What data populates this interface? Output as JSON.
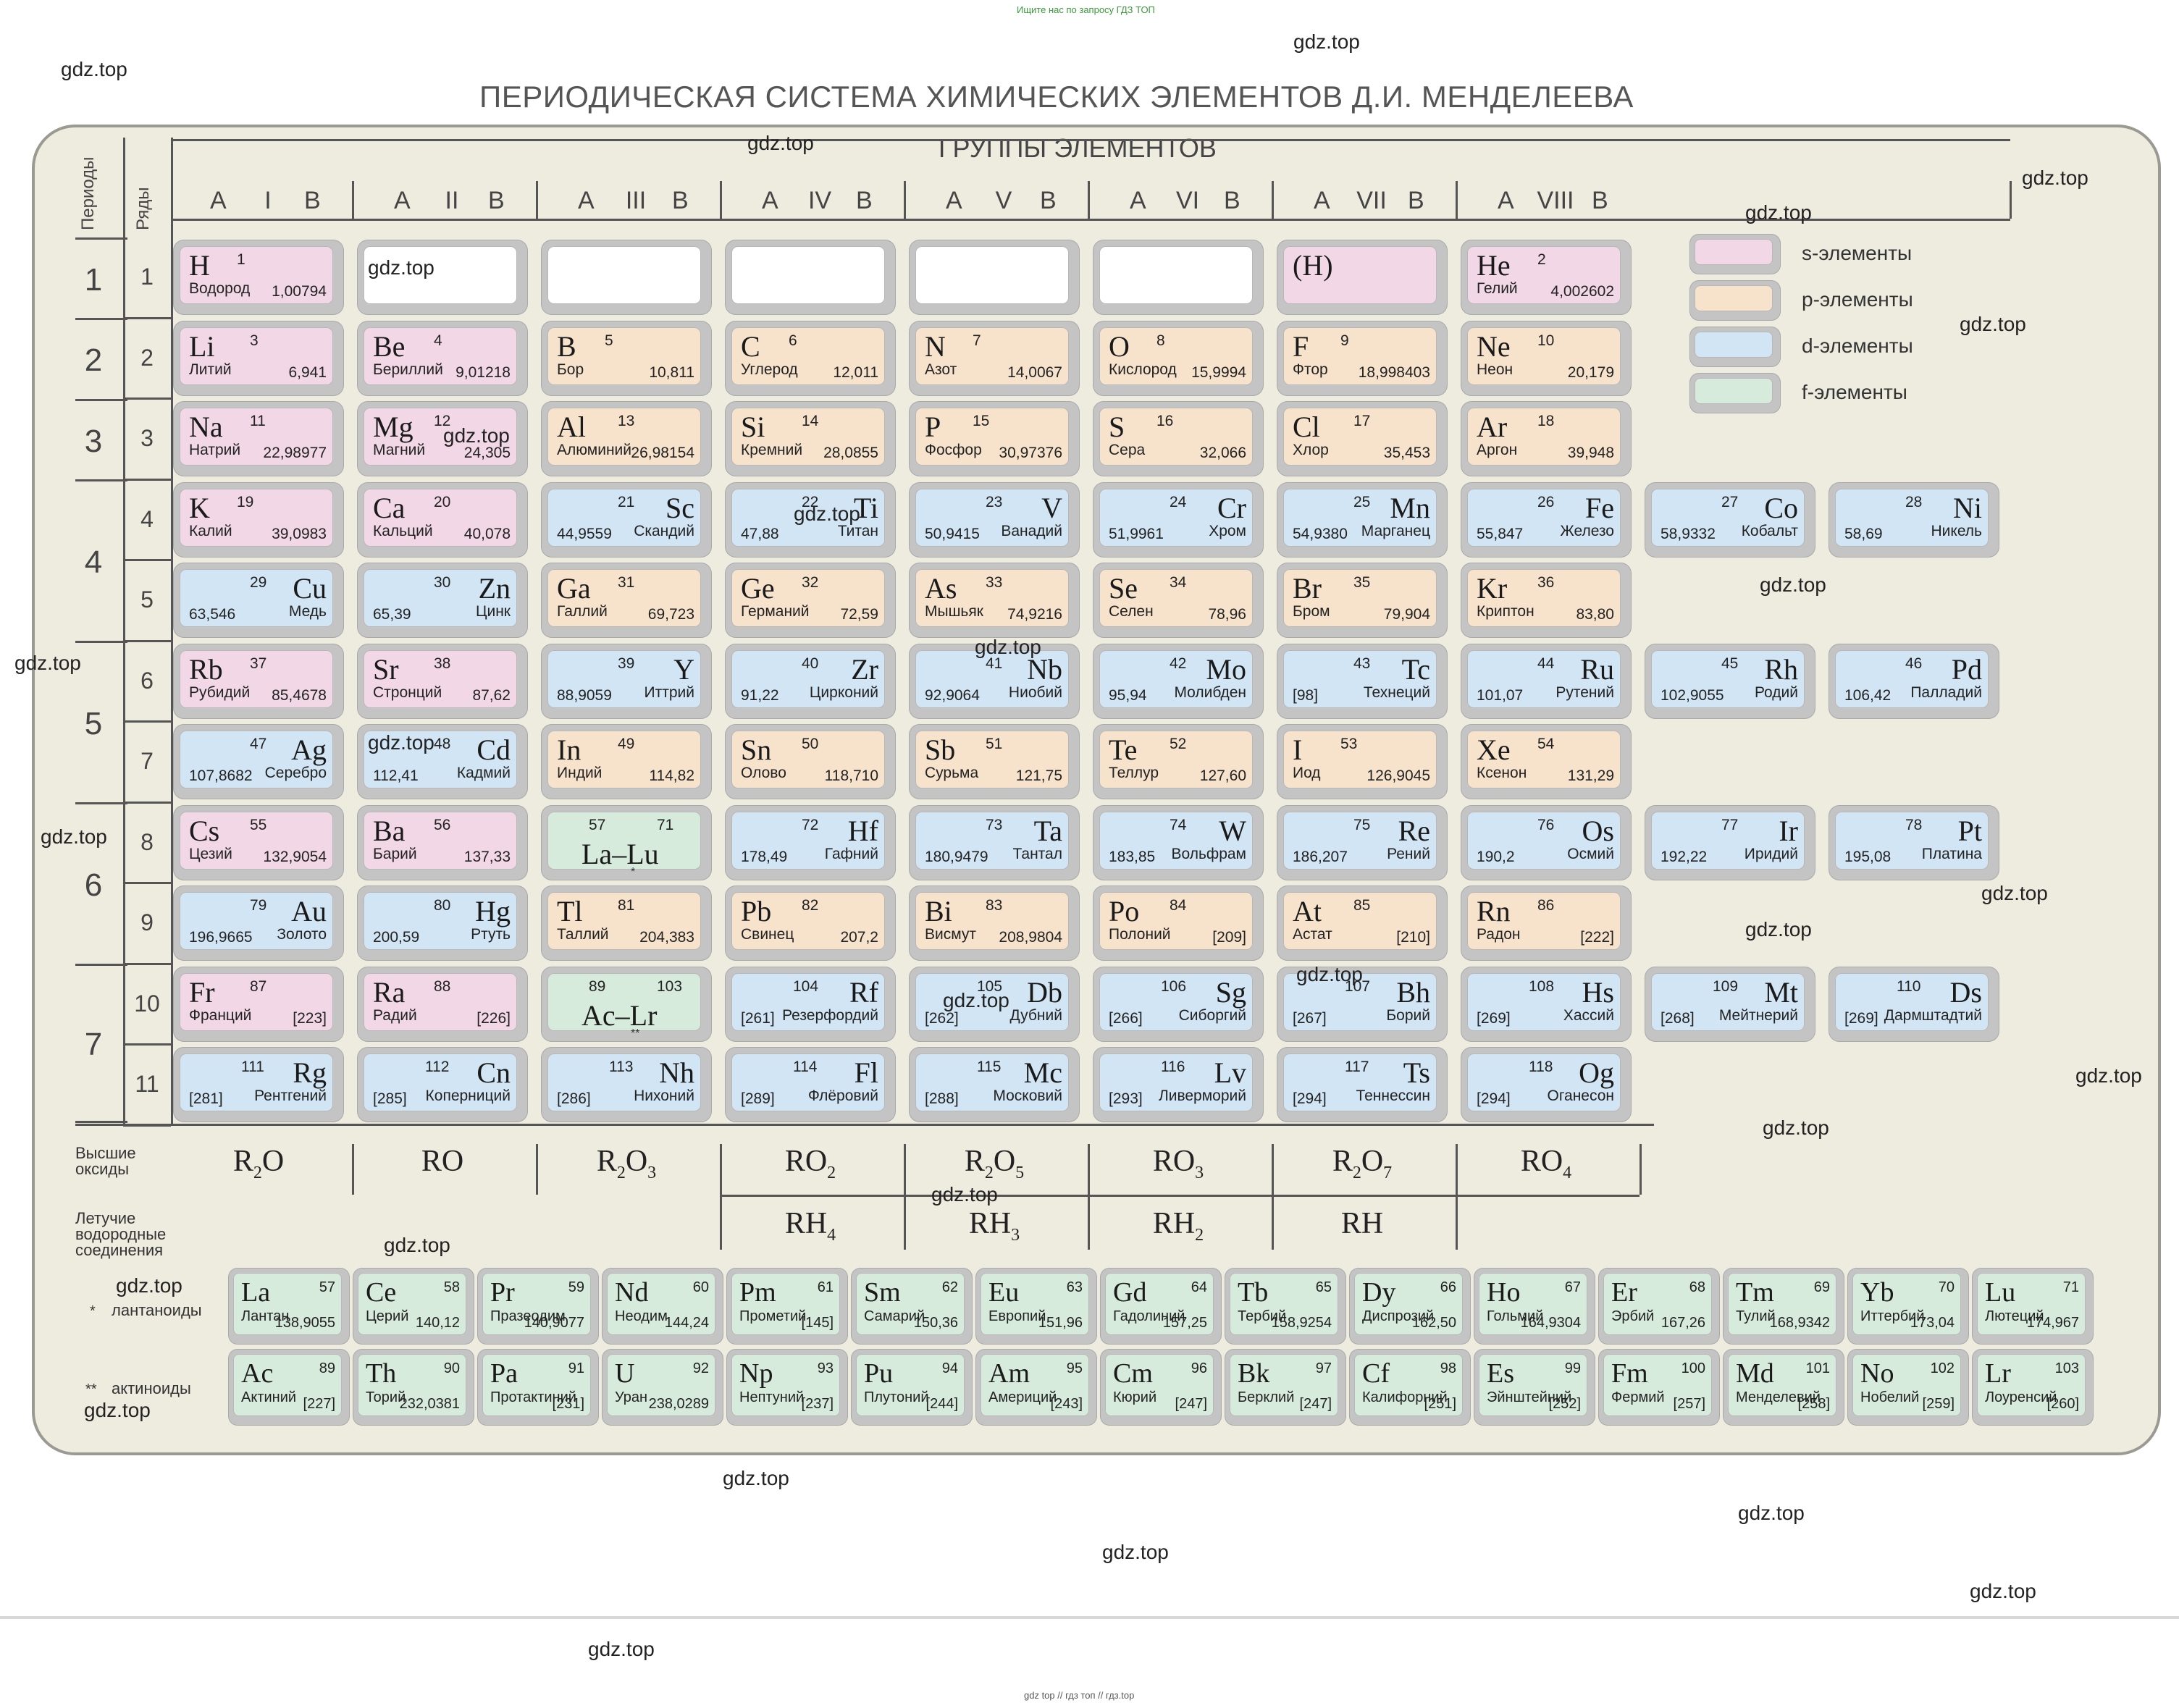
{
  "top_note": "Ищите нас по запросу ГДЗ ТОП",
  "bottom_note": "gdz top  //  гдз топ  //  гдз.top",
  "title": "ПЕРИОДИЧЕСКАЯ СИСТЕМА ХИМИЧЕСКИХ ЭЛЕМЕНТОВ Д.И. МЕНДЕЛЕЕВА",
  "groups_title": "ГРУППЫ ЭЛЕМЕНТОВ",
  "periods_label": "Периоды",
  "rows_label": "Ряды",
  "colors": {
    "s": "#f2d7e6",
    "p": "#f7e3cc",
    "d": "#d1e5f5",
    "f": "#d7ebdd",
    "board": "#eeecdf"
  },
  "groups": [
    {
      "a": "A",
      "roman": "I",
      "b": "B"
    },
    {
      "a": "A",
      "roman": "II",
      "b": "B"
    },
    {
      "a": "A",
      "roman": "III",
      "b": "B"
    },
    {
      "a": "A",
      "roman": "IV",
      "b": "B"
    },
    {
      "a": "A",
      "roman": "V",
      "b": "B"
    },
    {
      "a": "A",
      "roman": "VI",
      "b": "B"
    },
    {
      "a": "A",
      "roman": "VII",
      "b": "B"
    },
    {
      "a": "A",
      "roman": "VIII",
      "b": "B"
    }
  ],
  "periods": [
    "1",
    "2",
    "3",
    "4",
    "5",
    "6",
    "7"
  ],
  "rows": [
    "1",
    "2",
    "3",
    "4",
    "5",
    "6",
    "7",
    "8",
    "9",
    "10",
    "11"
  ],
  "legend": [
    {
      "type": "s",
      "label": "s-элементы"
    },
    {
      "type": "p",
      "label": "p-элементы"
    },
    {
      "type": "d",
      "label": "d-элементы"
    },
    {
      "type": "f",
      "label": "f-элементы"
    }
  ],
  "hydrogen_copy": "(H)",
  "elements": [
    {
      "s": "H",
      "n": "1",
      "name": "Водород",
      "m": "1,00794",
      "t": "s",
      "row": 1,
      "col": 1,
      "side": "L"
    },
    {
      "s": "He",
      "n": "2",
      "name": "Гелий",
      "m": "4,002602",
      "t": "s",
      "row": 1,
      "col": 8,
      "side": "L"
    },
    {
      "s": "Li",
      "n": "3",
      "name": "Литий",
      "m": "6,941",
      "t": "s",
      "row": 2,
      "col": 1,
      "side": "L"
    },
    {
      "s": "Be",
      "n": "4",
      "name": "Бериллий",
      "m": "9,01218",
      "t": "s",
      "row": 2,
      "col": 2,
      "side": "L"
    },
    {
      "s": "B",
      "n": "5",
      "name": "Бор",
      "m": "10,811",
      "t": "p",
      "row": 2,
      "col": 3,
      "side": "L"
    },
    {
      "s": "C",
      "n": "6",
      "name": "Углерод",
      "m": "12,011",
      "t": "p",
      "row": 2,
      "col": 4,
      "side": "L"
    },
    {
      "s": "N",
      "n": "7",
      "name": "Азот",
      "m": "14,0067",
      "t": "p",
      "row": 2,
      "col": 5,
      "side": "L"
    },
    {
      "s": "O",
      "n": "8",
      "name": "Кислород",
      "m": "15,9994",
      "t": "p",
      "row": 2,
      "col": 6,
      "side": "L"
    },
    {
      "s": "F",
      "n": "9",
      "name": "Фтор",
      "m": "18,998403",
      "t": "p",
      "row": 2,
      "col": 7,
      "side": "L"
    },
    {
      "s": "Ne",
      "n": "10",
      "name": "Неон",
      "m": "20,179",
      "t": "p",
      "row": 2,
      "col": 8,
      "side": "L"
    },
    {
      "s": "Na",
      "n": "11",
      "name": "Натрий",
      "m": "22,98977",
      "t": "s",
      "row": 3,
      "col": 1,
      "side": "L"
    },
    {
      "s": "Mg",
      "n": "12",
      "name": "Магний",
      "m": "24,305",
      "t": "s",
      "row": 3,
      "col": 2,
      "side": "L"
    },
    {
      "s": "Al",
      "n": "13",
      "name": "Алюминий",
      "m": "26,98154",
      "t": "p",
      "row": 3,
      "col": 3,
      "side": "L"
    },
    {
      "s": "Si",
      "n": "14",
      "name": "Кремний",
      "m": "28,0855",
      "t": "p",
      "row": 3,
      "col": 4,
      "side": "L"
    },
    {
      "s": "P",
      "n": "15",
      "name": "Фосфор",
      "m": "30,97376",
      "t": "p",
      "row": 3,
      "col": 5,
      "side": "L"
    },
    {
      "s": "S",
      "n": "16",
      "name": "Сера",
      "m": "32,066",
      "t": "p",
      "row": 3,
      "col": 6,
      "side": "L"
    },
    {
      "s": "Cl",
      "n": "17",
      "name": "Хлор",
      "m": "35,453",
      "t": "p",
      "row": 3,
      "col": 7,
      "side": "L"
    },
    {
      "s": "Ar",
      "n": "18",
      "name": "Аргон",
      "m": "39,948",
      "t": "p",
      "row": 3,
      "col": 8,
      "side": "L"
    },
    {
      "s": "K",
      "n": "19",
      "name": "Калий",
      "m": "39,0983",
      "t": "s",
      "row": 4,
      "col": 1,
      "side": "L"
    },
    {
      "s": "Ca",
      "n": "20",
      "name": "Кальций",
      "m": "40,078",
      "t": "s",
      "row": 4,
      "col": 2,
      "side": "L"
    },
    {
      "s": "Sc",
      "n": "21",
      "name": "Скандий",
      "m": "44,9559",
      "t": "d",
      "row": 4,
      "col": 3,
      "side": "R"
    },
    {
      "s": "Ti",
      "n": "22",
      "name": "Титан",
      "m": "47,88",
      "t": "d",
      "row": 4,
      "col": 4,
      "side": "R"
    },
    {
      "s": "V",
      "n": "23",
      "name": "Ванадий",
      "m": "50,9415",
      "t": "d",
      "row": 4,
      "col": 5,
      "side": "R"
    },
    {
      "s": "Cr",
      "n": "24",
      "name": "Хром",
      "m": "51,9961",
      "t": "d",
      "row": 4,
      "col": 6,
      "side": "R"
    },
    {
      "s": "Mn",
      "n": "25",
      "name": "Марганец",
      "m": "54,9380",
      "t": "d",
      "row": 4,
      "col": 7,
      "side": "R"
    },
    {
      "s": "Fe",
      "n": "26",
      "name": "Железо",
      "m": "55,847",
      "t": "d",
      "row": 4,
      "col": 8,
      "side": "R"
    },
    {
      "s": "Co",
      "n": "27",
      "name": "Кобальт",
      "m": "58,9332",
      "t": "d",
      "row": 4,
      "col": 9,
      "side": "R"
    },
    {
      "s": "Ni",
      "n": "28",
      "name": "Никель",
      "m": "58,69",
      "t": "d",
      "row": 4,
      "col": 10,
      "side": "R"
    },
    {
      "s": "Cu",
      "n": "29",
      "name": "Медь",
      "m": "63,546",
      "t": "d",
      "row": 5,
      "col": 1,
      "side": "R"
    },
    {
      "s": "Zn",
      "n": "30",
      "name": "Цинк",
      "m": "65,39",
      "t": "d",
      "row": 5,
      "col": 2,
      "side": "R"
    },
    {
      "s": "Ga",
      "n": "31",
      "name": "Галлий",
      "m": "69,723",
      "t": "p",
      "row": 5,
      "col": 3,
      "side": "L"
    },
    {
      "s": "Ge",
      "n": "32",
      "name": "Германий",
      "m": "72,59",
      "t": "p",
      "row": 5,
      "col": 4,
      "side": "L"
    },
    {
      "s": "As",
      "n": "33",
      "name": "Мышьяк",
      "m": "74,9216",
      "t": "p",
      "row": 5,
      "col": 5,
      "side": "L"
    },
    {
      "s": "Se",
      "n": "34",
      "name": "Селен",
      "m": "78,96",
      "t": "p",
      "row": 5,
      "col": 6,
      "side": "L"
    },
    {
      "s": "Br",
      "n": "35",
      "name": "Бром",
      "m": "79,904",
      "t": "p",
      "row": 5,
      "col": 7,
      "side": "L"
    },
    {
      "s": "Kr",
      "n": "36",
      "name": "Криптон",
      "m": "83,80",
      "t": "p",
      "row": 5,
      "col": 8,
      "side": "L"
    },
    {
      "s": "Rb",
      "n": "37",
      "name": "Рубидий",
      "m": "85,4678",
      "t": "s",
      "row": 6,
      "col": 1,
      "side": "L"
    },
    {
      "s": "Sr",
      "n": "38",
      "name": "Стронций",
      "m": "87,62",
      "t": "s",
      "row": 6,
      "col": 2,
      "side": "L"
    },
    {
      "s": "Y",
      "n": "39",
      "name": "Иттрий",
      "m": "88,9059",
      "t": "d",
      "row": 6,
      "col": 3,
      "side": "R"
    },
    {
      "s": "Zr",
      "n": "40",
      "name": "Цирконий",
      "m": "91,22",
      "t": "d",
      "row": 6,
      "col": 4,
      "side": "R"
    },
    {
      "s": "Nb",
      "n": "41",
      "name": "Ниобий",
      "m": "92,9064",
      "t": "d",
      "row": 6,
      "col": 5,
      "side": "R"
    },
    {
      "s": "Mo",
      "n": "42",
      "name": "Молибден",
      "m": "95,94",
      "t": "d",
      "row": 6,
      "col": 6,
      "side": "R"
    },
    {
      "s": "Tc",
      "n": "43",
      "name": "Технеций",
      "m": "[98]",
      "t": "d",
      "row": 6,
      "col": 7,
      "side": "R"
    },
    {
      "s": "Ru",
      "n": "44",
      "name": "Рутений",
      "m": "101,07",
      "t": "d",
      "row": 6,
      "col": 8,
      "side": "R"
    },
    {
      "s": "Rh",
      "n": "45",
      "name": "Родий",
      "m": "102,9055",
      "t": "d",
      "row": 6,
      "col": 9,
      "side": "R"
    },
    {
      "s": "Pd",
      "n": "46",
      "name": "Палладий",
      "m": "106,42",
      "t": "d",
      "row": 6,
      "col": 10,
      "side": "R"
    },
    {
      "s": "Ag",
      "n": "47",
      "name": "Серебро",
      "m": "107,8682",
      "t": "d",
      "row": 7,
      "col": 1,
      "side": "R"
    },
    {
      "s": "Cd",
      "n": "48",
      "name": "Кадмий",
      "m": "112,41",
      "t": "d",
      "row": 7,
      "col": 2,
      "side": "R"
    },
    {
      "s": "In",
      "n": "49",
      "name": "Индий",
      "m": "114,82",
      "t": "p",
      "row": 7,
      "col": 3,
      "side": "L"
    },
    {
      "s": "Sn",
      "n": "50",
      "name": "Олово",
      "m": "118,710",
      "t": "p",
      "row": 7,
      "col": 4,
      "side": "L"
    },
    {
      "s": "Sb",
      "n": "51",
      "name": "Сурьма",
      "m": "121,75",
      "t": "p",
      "row": 7,
      "col": 5,
      "side": "L"
    },
    {
      "s": "Te",
      "n": "52",
      "name": "Теллур",
      "m": "127,60",
      "t": "p",
      "row": 7,
      "col": 6,
      "side": "L"
    },
    {
      "s": "I",
      "n": "53",
      "name": "Иод",
      "m": "126,9045",
      "t": "p",
      "row": 7,
      "col": 7,
      "side": "L"
    },
    {
      "s": "Xe",
      "n": "54",
      "name": "Ксенон",
      "m": "131,29",
      "t": "p",
      "row": 7,
      "col": 8,
      "side": "L"
    },
    {
      "s": "Cs",
      "n": "55",
      "name": "Цезий",
      "m": "132,9054",
      "t": "s",
      "row": 8,
      "col": 1,
      "side": "L"
    },
    {
      "s": "Ba",
      "n": "56",
      "name": "Барий",
      "m": "137,33",
      "t": "s",
      "row": 8,
      "col": 2,
      "side": "L"
    },
    {
      "s": "Hf",
      "n": "72",
      "name": "Гафний",
      "m": "178,49",
      "t": "d",
      "row": 8,
      "col": 4,
      "side": "R"
    },
    {
      "s": "Ta",
      "n": "73",
      "name": "Тантал",
      "m": "180,9479",
      "t": "d",
      "row": 8,
      "col": 5,
      "side": "R"
    },
    {
      "s": "W",
      "n": "74",
      "name": "Вольфрам",
      "m": "183,85",
      "t": "d",
      "row": 8,
      "col": 6,
      "side": "R"
    },
    {
      "s": "Re",
      "n": "75",
      "name": "Рений",
      "m": "186,207",
      "t": "d",
      "row": 8,
      "col": 7,
      "side": "R"
    },
    {
      "s": "Os",
      "n": "76",
      "name": "Осмий",
      "m": "190,2",
      "t": "d",
      "row": 8,
      "col": 8,
      "side": "R"
    },
    {
      "s": "Ir",
      "n": "77",
      "name": "Иридий",
      "m": "192,22",
      "t": "d",
      "row": 8,
      "col": 9,
      "side": "R"
    },
    {
      "s": "Pt",
      "n": "78",
      "name": "Платина",
      "m": "195,08",
      "t": "d",
      "row": 8,
      "col": 10,
      "side": "R"
    },
    {
      "s": "Au",
      "n": "79",
      "name": "Золото",
      "m": "196,9665",
      "t": "d",
      "row": 9,
      "col": 1,
      "side": "R"
    },
    {
      "s": "Hg",
      "n": "80",
      "name": "Ртуть",
      "m": "200,59",
      "t": "d",
      "row": 9,
      "col": 2,
      "side": "R"
    },
    {
      "s": "Tl",
      "n": "81",
      "name": "Таллий",
      "m": "204,383",
      "t": "p",
      "row": 9,
      "col": 3,
      "side": "L"
    },
    {
      "s": "Pb",
      "n": "82",
      "name": "Свинец",
      "m": "207,2",
      "t": "p",
      "row": 9,
      "col": 4,
      "side": "L"
    },
    {
      "s": "Bi",
      "n": "83",
      "name": "Висмут",
      "m": "208,9804",
      "t": "p",
      "row": 9,
      "col": 5,
      "side": "L"
    },
    {
      "s": "Po",
      "n": "84",
      "name": "Полоний",
      "m": "[209]",
      "t": "p",
      "row": 9,
      "col": 6,
      "side": "L"
    },
    {
      "s": "At",
      "n": "85",
      "name": "Астат",
      "m": "[210]",
      "t": "p",
      "row": 9,
      "col": 7,
      "side": "L"
    },
    {
      "s": "Rn",
      "n": "86",
      "name": "Радон",
      "m": "[222]",
      "t": "p",
      "row": 9,
      "col": 8,
      "side": "L"
    },
    {
      "s": "Fr",
      "n": "87",
      "name": "Франций",
      "m": "[223]",
      "t": "s",
      "row": 10,
      "col": 1,
      "side": "L"
    },
    {
      "s": "Ra",
      "n": "88",
      "name": "Радий",
      "m": "[226]",
      "t": "s",
      "row": 10,
      "col": 2,
      "side": "L"
    },
    {
      "s": "Rf",
      "n": "104",
      "name": "Резерфордий",
      "m": "[261]",
      "t": "d",
      "row": 10,
      "col": 4,
      "side": "R"
    },
    {
      "s": "Db",
      "n": "105",
      "name": "Дубний",
      "m": "[262]",
      "t": "d",
      "row": 10,
      "col": 5,
      "side": "R"
    },
    {
      "s": "Sg",
      "n": "106",
      "name": "Сиборгий",
      "m": "[266]",
      "t": "d",
      "row": 10,
      "col": 6,
      "side": "R"
    },
    {
      "s": "Bh",
      "n": "107",
      "name": "Борий",
      "m": "[267]",
      "t": "d",
      "row": 10,
      "col": 7,
      "side": "R"
    },
    {
      "s": "Hs",
      "n": "108",
      "name": "Хассий",
      "m": "[269]",
      "t": "d",
      "row": 10,
      "col": 8,
      "side": "R"
    },
    {
      "s": "Mt",
      "n": "109",
      "name": "Мейтнерий",
      "m": "[268]",
      "t": "d",
      "row": 10,
      "col": 9,
      "side": "R"
    },
    {
      "s": "Ds",
      "n": "110",
      "name": "Дармштадтий",
      "m": "[269]",
      "t": "d",
      "row": 10,
      "col": 10,
      "side": "R"
    },
    {
      "s": "Rg",
      "n": "111",
      "name": "Рентгений",
      "m": "[281]",
      "t": "d",
      "row": 11,
      "col": 1,
      "side": "R"
    },
    {
      "s": "Cn",
      "n": "112",
      "name": "Коперниций",
      "m": "[285]",
      "t": "d",
      "row": 11,
      "col": 2,
      "side": "R"
    },
    {
      "s": "Nh",
      "n": "113",
      "name": "Нихоний",
      "m": "[286]",
      "t": "d",
      "row": 11,
      "col": 3,
      "side": "R"
    },
    {
      "s": "Fl",
      "n": "114",
      "name": "Флёровий",
      "m": "[289]",
      "t": "d",
      "row": 11,
      "col": 4,
      "side": "R"
    },
    {
      "s": "Mc",
      "n": "115",
      "name": "Московий",
      "m": "[288]",
      "t": "d",
      "row": 11,
      "col": 5,
      "side": "R"
    },
    {
      "s": "Lv",
      "n": "116",
      "name": "Ливерморий",
      "m": "[293]",
      "t": "d",
      "row": 11,
      "col": 6,
      "side": "R"
    },
    {
      "s": "Ts",
      "n": "117",
      "name": "Теннессин",
      "m": "[294]",
      "t": "d",
      "row": 11,
      "col": 7,
      "side": "R"
    },
    {
      "s": "Og",
      "n": "118",
      "name": "Оганесон",
      "m": "[294]",
      "t": "d",
      "row": 11,
      "col": 8,
      "side": "R"
    }
  ],
  "series_cells": [
    {
      "n1": "57",
      "n2": "71",
      "label": "La–Lu",
      "mark": "*",
      "row": 8,
      "col": 3
    },
    {
      "n1": "89",
      "n2": "103",
      "label": "Ac–Lr",
      "mark": "**",
      "row": 10,
      "col": 3
    }
  ],
  "oxides_label": "Высшие оксиды",
  "oxides": [
    {
      "a": "R",
      "sub1": "2",
      "b": "O",
      "sub2": ""
    },
    {
      "a": "RO",
      "sub1": "",
      "b": "",
      "sub2": ""
    },
    {
      "a": "R",
      "sub1": "2",
      "b": "O",
      "sub2": "3"
    },
    {
      "a": "RO",
      "sub1": "2",
      "b": "",
      "sub2": ""
    },
    {
      "a": "R",
      "sub1": "2",
      "b": "O",
      "sub2": "5"
    },
    {
      "a": "RO",
      "sub1": "3",
      "b": "",
      "sub2": ""
    },
    {
      "a": "R",
      "sub1": "2",
      "b": "O",
      "sub2": "7"
    },
    {
      "a": "RO",
      "sub1": "4",
      "b": "",
      "sub2": ""
    }
  ],
  "hydrides_label": "Летучие водородные соединения",
  "hydrides": [
    {
      "a": "RH",
      "sub": "4"
    },
    {
      "a": "RH",
      "sub": "3"
    },
    {
      "a": "RH",
      "sub": "2"
    },
    {
      "a": "RH",
      "sub": ""
    }
  ],
  "lanthanides_label": "лантаноиды",
  "lanthanides_mark": "*",
  "actinides_label": "актиноиды",
  "actinides_mark": "**",
  "lanthanides": [
    {
      "s": "La",
      "n": "57",
      "name": "Лантан",
      "m": "138,9055"
    },
    {
      "s": "Ce",
      "n": "58",
      "name": "Церий",
      "m": "140,12"
    },
    {
      "s": "Pr",
      "n": "59",
      "name": "Празеодим",
      "m": "140,9077"
    },
    {
      "s": "Nd",
      "n": "60",
      "name": "Неодим",
      "m": "144,24"
    },
    {
      "s": "Pm",
      "n": "61",
      "name": "Прометий",
      "m": "[145]"
    },
    {
      "s": "Sm",
      "n": "62",
      "name": "Самарий",
      "m": "150,36"
    },
    {
      "s": "Eu",
      "n": "63",
      "name": "Европий",
      "m": "151,96"
    },
    {
      "s": "Gd",
      "n": "64",
      "name": "Гадолиний",
      "m": "157,25"
    },
    {
      "s": "Tb",
      "n": "65",
      "name": "Тербий",
      "m": "158,9254"
    },
    {
      "s": "Dy",
      "n": "66",
      "name": "Диспрозий",
      "m": "162,50"
    },
    {
      "s": "Ho",
      "n": "67",
      "name": "Гольмий",
      "m": "164,9304"
    },
    {
      "s": "Er",
      "n": "68",
      "name": "Эрбий",
      "m": "167,26"
    },
    {
      "s": "Tm",
      "n": "69",
      "name": "Тулий",
      "m": "168,9342"
    },
    {
      "s": "Yb",
      "n": "70",
      "name": "Иттербий",
      "m": "173,04"
    },
    {
      "s": "Lu",
      "n": "71",
      "name": "Лютеций",
      "m": "174,967"
    }
  ],
  "actinides": [
    {
      "s": "Ac",
      "n": "89",
      "name": "Актиний",
      "m": "[227]"
    },
    {
      "s": "Th",
      "n": "90",
      "name": "Торий",
      "m": "232,0381"
    },
    {
      "s": "Pa",
      "n": "91",
      "name": "Протактиний",
      "m": "[231]"
    },
    {
      "s": "U",
      "n": "92",
      "name": "Уран",
      "m": "238,0289"
    },
    {
      "s": "Np",
      "n": "93",
      "name": "Нептуний",
      "m": "[237]"
    },
    {
      "s": "Pu",
      "n": "94",
      "name": "Плутоний",
      "m": "[244]"
    },
    {
      "s": "Am",
      "n": "95",
      "name": "Америций",
      "m": "[243]"
    },
    {
      "s": "Cm",
      "n": "96",
      "name": "Кюрий",
      "m": "[247]"
    },
    {
      "s": "Bk",
      "n": "97",
      "name": "Берклий",
      "m": "[247]"
    },
    {
      "s": "Cf",
      "n": "98",
      "name": "Калифорний",
      "m": "[251]"
    },
    {
      "s": "Es",
      "n": "99",
      "name": "Эйнштейний",
      "m": "[252]"
    },
    {
      "s": "Fm",
      "n": "100",
      "name": "Фермий",
      "m": "[257]"
    },
    {
      "s": "Md",
      "n": "101",
      "name": "Менделевий",
      "m": "[258]"
    },
    {
      "s": "No",
      "n": "102",
      "name": "Нобелий",
      "m": "[259]"
    },
    {
      "s": "Lr",
      "n": "103",
      "name": "Лоуренсий",
      "m": "[260]"
    }
  ],
  "watermark": "gdz.top"
}
